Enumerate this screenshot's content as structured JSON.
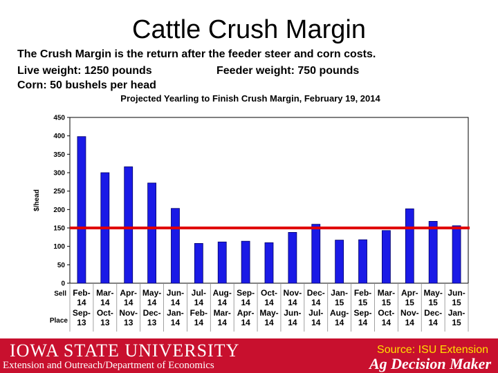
{
  "slide": {
    "title": "Cattle Crush Margin",
    "line1": "The Crush Margin is the return after the feeder steer and corn costs.",
    "line2a": "Live weight:  1250 pounds",
    "line2b": "Feeder weight:  750 pounds",
    "line3": "Corn:  50 bushels per head"
  },
  "chart_data": {
    "type": "bar",
    "title": "Projected Yearling to Finish Crush Margin, February 19, 2014",
    "ylabel": "$/head",
    "ylim": [
      0,
      450
    ],
    "yticks": [
      0,
      50,
      100,
      150,
      200,
      250,
      300,
      350,
      400,
      450
    ],
    "row_labels": {
      "sell": "Sell",
      "place": "Place"
    },
    "sell_dates": [
      [
        "Feb-",
        "14"
      ],
      [
        "Mar-",
        "14"
      ],
      [
        "Apr-",
        "14"
      ],
      [
        "May-",
        "14"
      ],
      [
        "Jun-",
        "14"
      ],
      [
        "Jul-",
        "14"
      ],
      [
        "Aug-",
        "14"
      ],
      [
        "Sep-",
        "14"
      ],
      [
        "Oct-",
        "14"
      ],
      [
        "Nov-",
        "14"
      ],
      [
        "Dec-",
        "14"
      ],
      [
        "Jan-",
        "15"
      ],
      [
        "Feb-",
        "15"
      ],
      [
        "Mar-",
        "15"
      ],
      [
        "Apr-",
        "15"
      ],
      [
        "May-",
        "15"
      ],
      [
        "Jun-",
        "15"
      ]
    ],
    "place_dates": [
      [
        "Sep-",
        "13"
      ],
      [
        "Oct-",
        "13"
      ],
      [
        "Nov-",
        "13"
      ],
      [
        "Dec-",
        "13"
      ],
      [
        "Jan-",
        "14"
      ],
      [
        "Feb-",
        "14"
      ],
      [
        "Mar-",
        "14"
      ],
      [
        "Apr-",
        "14"
      ],
      [
        "May-",
        "14"
      ],
      [
        "Jun-",
        "14"
      ],
      [
        "Jul-",
        "14"
      ],
      [
        "Aug-",
        "14"
      ],
      [
        "Sep-",
        "14"
      ],
      [
        "Oct-",
        "14"
      ],
      [
        "Nov-",
        "14"
      ],
      [
        "Dec-",
        "14"
      ],
      [
        "Jan-",
        "15"
      ]
    ],
    "values": [
      398,
      300,
      316,
      272,
      203,
      108,
      112,
      114,
      110,
      138,
      160,
      117,
      118,
      143,
      202,
      168,
      156
    ],
    "reference_line": 150,
    "grid": false,
    "colors": {
      "bar": "#1a1ae6",
      "bar_edge": "#000066",
      "reference_line": "#e00000"
    }
  },
  "footer": {
    "logo": "IOWA STATE UNIVERSITY",
    "dept": "Extension and Outreach/Department of Economics",
    "source": "Source: ISU Extension",
    "agdm": "Ag Decision Maker",
    "color": "#c8102e"
  }
}
